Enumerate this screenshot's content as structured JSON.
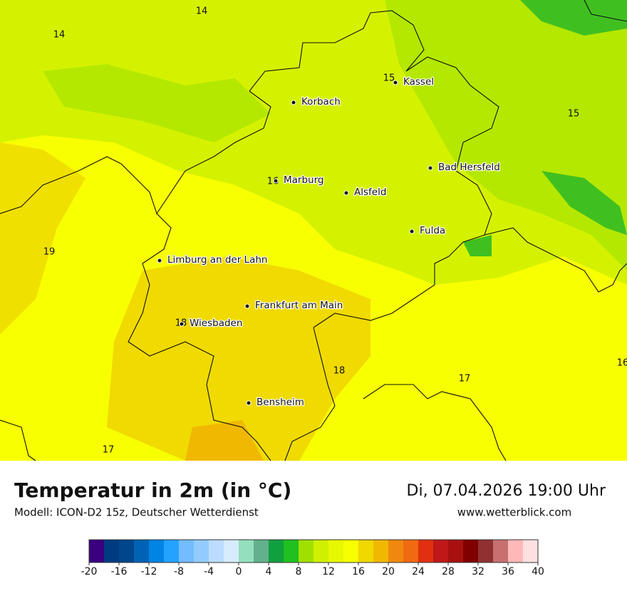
{
  "header": {
    "title": "Temperatur in 2m (in °C)",
    "model": "Modell: ICON-D2 15z, Deutscher Wetterdienst",
    "date": "Di, 07.04.2026 19:00 Uhr",
    "website": "www.wetterblick.com"
  },
  "cities": [
    "Kassel",
    "Korbach",
    "Bad Hersfeld",
    "Marburg",
    "Alsfeld",
    "Fulda",
    "Limburg an der Lahn",
    "Frankfurt am Main",
    "Wiesbaden",
    "Bensheim"
  ],
  "temperature_labels": [
    14,
    14,
    15,
    15,
    16,
    16,
    19,
    18,
    18,
    17,
    17
  ],
  "colorbar": {
    "colors": [
      "#3a0080",
      "#003a80",
      "#00468c",
      "#0062b4",
      "#0084e4",
      "#24a2ff",
      "#72bcff",
      "#92ccff",
      "#bcdcff",
      "#d8ecff",
      "#94e0bc",
      "#62b08c",
      "#10a040",
      "#20c020",
      "#a0e000",
      "#d0f000",
      "#e8f800",
      "#f8ff00",
      "#f0d800",
      "#f0b800",
      "#f08810",
      "#f06a10",
      "#e03010",
      "#c01818",
      "#a81010",
      "#800000",
      "#903030",
      "#c87070",
      "#ffb8b8",
      "#ffe0e0"
    ],
    "ticks": [
      -20,
      -16,
      -12,
      -8,
      -4,
      0,
      4,
      8,
      12,
      16,
      20,
      24,
      28,
      32,
      36,
      40
    ]
  }
}
